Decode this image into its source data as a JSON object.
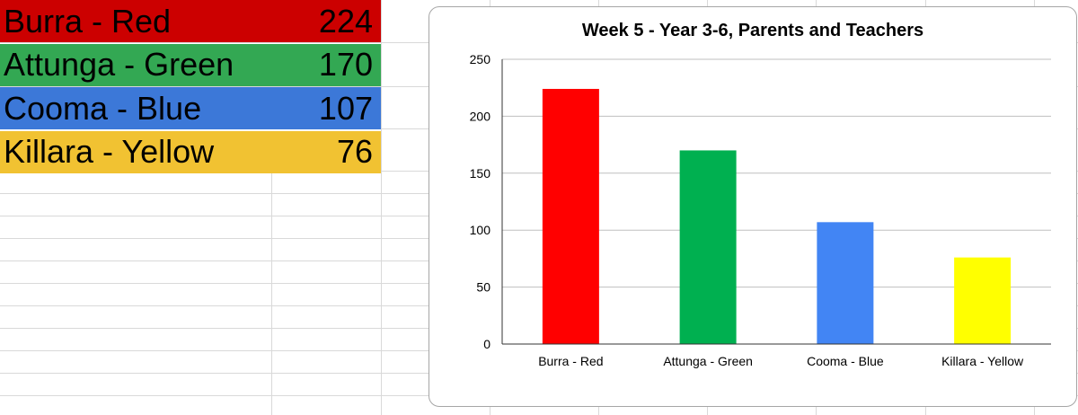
{
  "sheet": {
    "rows": [
      {
        "name": "Burra - Red",
        "value": "224",
        "color": "#cc0000"
      },
      {
        "name": "Attunga - Green",
        "value": "170",
        "color": "#33a853"
      },
      {
        "name": "Cooma - Blue",
        "value": "107",
        "color": "#3c78d8"
      },
      {
        "name": "Killara - Yellow",
        "value": "76",
        "color": "#f1c232"
      }
    ]
  },
  "chart_data": {
    "type": "bar",
    "title": "Week 5 - Year 3-6, Parents and Teachers",
    "categories": [
      "Burra - Red",
      "Attunga - Green",
      "Cooma - Blue",
      "Killara - Yellow"
    ],
    "values": [
      224,
      170,
      107,
      76
    ],
    "bar_colors": [
      "#ff0000",
      "#00b050",
      "#4285f4",
      "#ffff00"
    ],
    "xlabel": "",
    "ylabel": "",
    "ylim": [
      0,
      250
    ],
    "yticks": [
      0,
      50,
      100,
      150,
      200,
      250
    ],
    "grid": true,
    "legend": "none"
  }
}
